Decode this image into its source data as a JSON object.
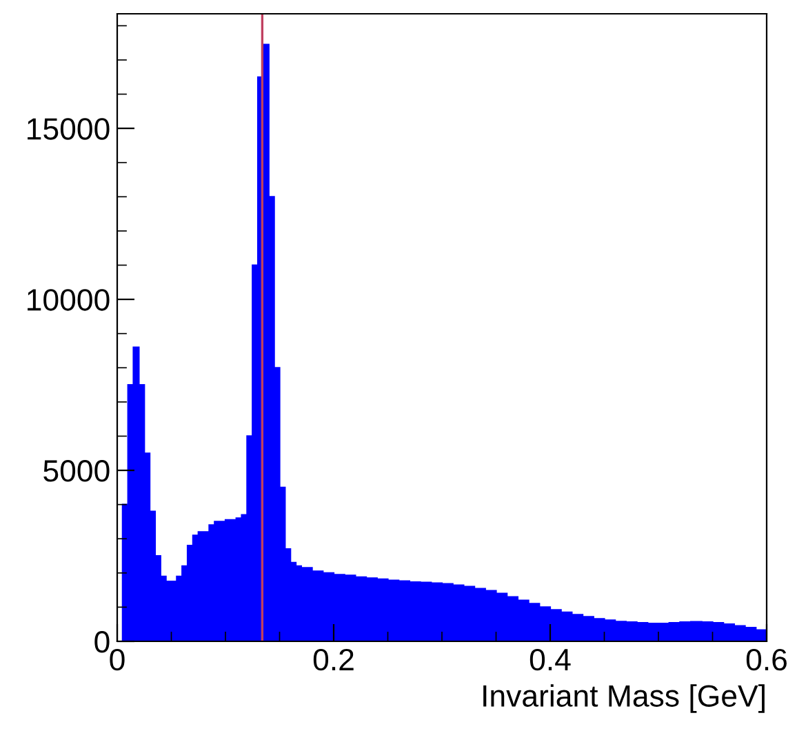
{
  "chart_data": {
    "type": "histogram",
    "xlabel": "Invariant Mass [GeV]",
    "bins": [
      0,
      0.005,
      0.01,
      0.015,
      0.02,
      0.025,
      0.03,
      0.035,
      0.04,
      0.045,
      0.05,
      0.055,
      0.06,
      0.065,
      0.07,
      0.075,
      0.08,
      0.085,
      0.09,
      0.095,
      0.1,
      0.105,
      0.11,
      0.115,
      0.12,
      0.125,
      0.13,
      0.135,
      0.14,
      0.145,
      0.15,
      0.155,
      0.16,
      0.165,
      0.17,
      0.18,
      0.19,
      0.2,
      0.21,
      0.22,
      0.23,
      0.24,
      0.25,
      0.26,
      0.27,
      0.28,
      0.29,
      0.3,
      0.31,
      0.32,
      0.33,
      0.34,
      0.35,
      0.36,
      0.37,
      0.38,
      0.39,
      0.4,
      0.41,
      0.42,
      0.43,
      0.44,
      0.45,
      0.46,
      0.47,
      0.48,
      0.49,
      0.5,
      0.51,
      0.52,
      0.53,
      0.54,
      0.55,
      0.56,
      0.57,
      0.58,
      0.59,
      0.6
    ],
    "values": [
      0,
      4000,
      7500,
      8600,
      7500,
      5500,
      3800,
      2500,
      1900,
      1750,
      1750,
      1900,
      2200,
      2800,
      3100,
      3200,
      3200,
      3400,
      3500,
      3500,
      3550,
      3550,
      3600,
      3700,
      6000,
      11000,
      16500,
      17450,
      13000,
      8000,
      4500,
      2700,
      2300,
      2200,
      2150,
      2050,
      2000,
      1950,
      1930,
      1880,
      1850,
      1820,
      1780,
      1760,
      1730,
      1720,
      1700,
      1680,
      1640,
      1600,
      1540,
      1480,
      1400,
      1300,
      1200,
      1100,
      1000,
      920,
      850,
      780,
      720,
      660,
      620,
      580,
      560,
      540,
      520,
      520,
      540,
      560,
      570,
      560,
      540,
      500,
      450,
      400,
      330
    ],
    "color": "#0000ff",
    "xlim": [
      0,
      0.6
    ],
    "ylim": [
      0,
      18350
    ],
    "xticks": [
      0,
      0.2,
      0.4,
      0.6
    ],
    "yticks": [
      0,
      5000,
      10000,
      15000
    ],
    "ref_lines": [
      {
        "axis": "x",
        "value": 0.134,
        "color": "#c04060"
      }
    ],
    "grid": false
  }
}
